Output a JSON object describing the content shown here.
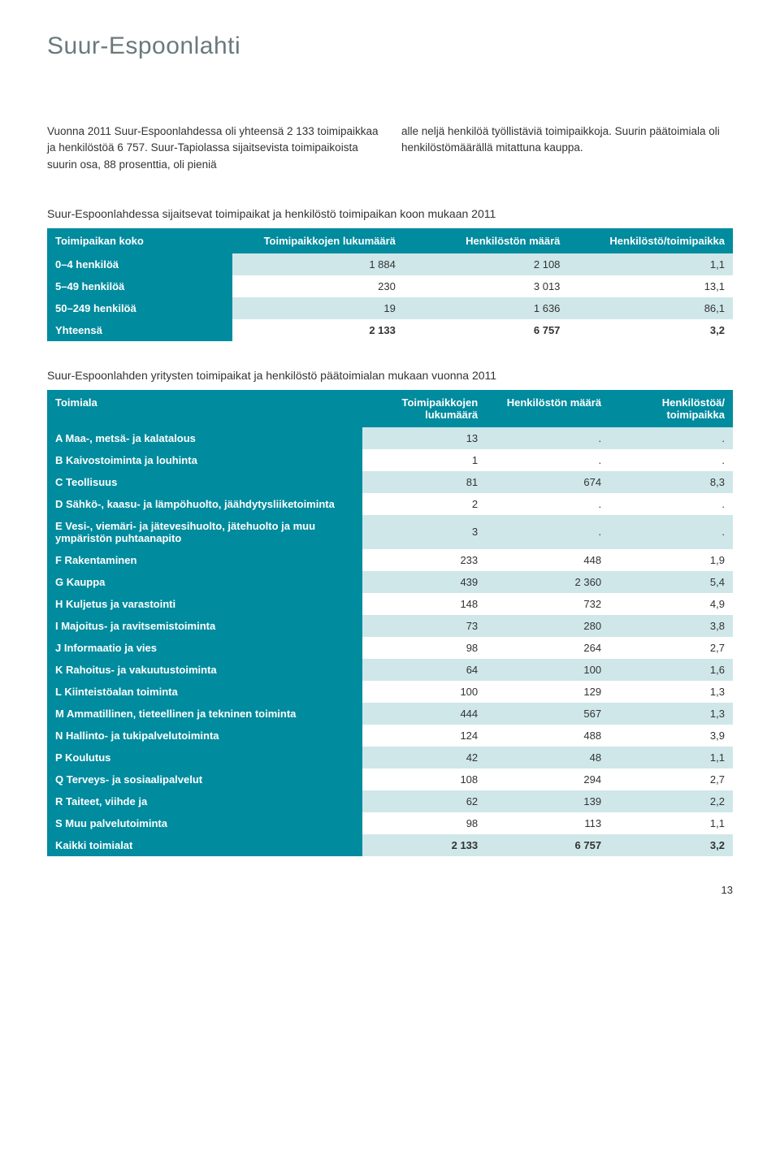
{
  "title": "Suur-Espoonlahti",
  "intro": {
    "left": "Vuonna 2011 Suur-Espoonlahdessa oli yhteensä 2 133 toimipaikkaa ja henkilöstöä 6 757. Suur-Tapiolassa sijaitsevista toimipaikoista suurin osa, 88 prosenttia, oli pieniä",
    "right": "alle neljä henkilöä työllistäviä toimipaikkoja. Suurin päätoimiala oli henkilöstömäärällä mitattuna kauppa."
  },
  "table1": {
    "caption": "Suur-Espoonlahdessa sijaitsevat toimipaikat ja henkilöstö toimipaikan koon mukaan 2011",
    "header_bg": "#008b9e",
    "row_alt_bg": "#cfe7e9",
    "row_bg": "#ffffff",
    "columns": [
      "Toimipaikan koko",
      "Toimipaikkojen lukumäärä",
      "Henkilöstön määrä",
      "Henkilöstö/toimipaikka"
    ],
    "rows": [
      [
        "0–4 henkilöä",
        "1 884",
        "2 108",
        "1,1"
      ],
      [
        "5–49 henkilöä",
        "230",
        "3 013",
        "13,1"
      ],
      [
        "50–249 henkilöä",
        "19",
        "1 636",
        "86,1"
      ],
      [
        "Yhteensä",
        "2 133",
        "6 757",
        "3,2"
      ]
    ]
  },
  "table2": {
    "caption": "Suur-Espoonlahden yritysten toimipaikat ja henkilöstö päätoimialan mukaan vuonna 2011",
    "header_bg": "#008b9e",
    "row_alt_bg": "#cfe7e9",
    "row_bg": "#ffffff",
    "columns": [
      "Toimiala",
      "Toimipaikkojen lukumäärä",
      "Henkilöstön määrä",
      "Henkilöstöä/ toimipaikka"
    ],
    "rows": [
      [
        "A Maa-, metsä- ja kalatalous",
        "13",
        ".",
        "."
      ],
      [
        "B Kaivostoiminta ja louhinta",
        "1",
        ".",
        "."
      ],
      [
        "C Teollisuus",
        "81",
        "674",
        "8,3"
      ],
      [
        "D Sähkö-, kaasu- ja lämpöhuolto, jäähdytysliiketoiminta",
        "2",
        ".",
        "."
      ],
      [
        "E Vesi-, viemäri- ja jätevesihuolto, jätehuolto ja muu ympäristön puhtaanapito",
        "3",
        ".",
        "."
      ],
      [
        "F Rakentaminen",
        "233",
        "448",
        "1,9"
      ],
      [
        "G Kauppa",
        "439",
        "2 360",
        "5,4"
      ],
      [
        "H Kuljetus ja varastointi",
        "148",
        "732",
        "4,9"
      ],
      [
        "I  Majoitus- ja ravitsemistoiminta",
        "73",
        "280",
        "3,8"
      ],
      [
        "J Informaatio ja vies",
        "98",
        "264",
        "2,7"
      ],
      [
        "K Rahoitus- ja vakuutustoiminta",
        "64",
        "100",
        "1,6"
      ],
      [
        "L Kiinteistöalan toiminta",
        "100",
        "129",
        "1,3"
      ],
      [
        "M Ammatillinen, tieteellinen ja tekninen toiminta",
        "444",
        "567",
        "1,3"
      ],
      [
        "N Hallinto- ja tukipalvelutoiminta",
        "124",
        "488",
        "3,9"
      ],
      [
        "P Koulutus",
        "42",
        "48",
        "1,1"
      ],
      [
        "Q Terveys- ja sosiaalipalvelut",
        "108",
        "294",
        "2,7"
      ],
      [
        "R Taiteet, viihde ja",
        "62",
        "139",
        "2,2"
      ],
      [
        "S Muu palvelutoiminta",
        "98",
        "113",
        "1,1"
      ],
      [
        "Kaikki toimialat",
        "2 133",
        "6 757",
        "3,2"
      ]
    ]
  },
  "page_number": "13"
}
